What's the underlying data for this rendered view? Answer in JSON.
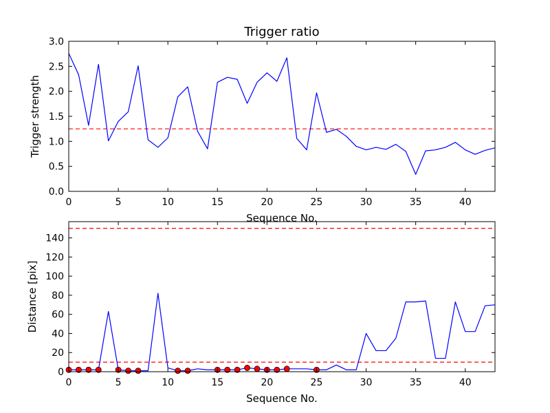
{
  "chart_data": [
    {
      "type": "line",
      "title": "Trigger ratio",
      "xlabel": "Sequence No.",
      "ylabel": "Trigger strength",
      "xlim": [
        0,
        43
      ],
      "ylim": [
        0,
        3.0
      ],
      "xticks": [
        0,
        5,
        10,
        15,
        20,
        25,
        30,
        35,
        40
      ],
      "yticks": [
        "0.0",
        "0.5",
        "1.0",
        "1.5",
        "2.0",
        "2.5",
        "3.0"
      ],
      "line_color": "#0000ff",
      "threshold": 1.25,
      "threshold_color": "#ff0000",
      "x": [
        0,
        1,
        2,
        3,
        4,
        5,
        6,
        7,
        8,
        9,
        10,
        11,
        12,
        13,
        14,
        15,
        16,
        17,
        18,
        19,
        20,
        21,
        22,
        23,
        24,
        25,
        26,
        27,
        28,
        29,
        30,
        31,
        32,
        33,
        34,
        35,
        36,
        37,
        38,
        39,
        40,
        41,
        42,
        43
      ],
      "values": [
        2.76,
        2.33,
        1.32,
        2.54,
        1.01,
        1.4,
        1.59,
        2.51,
        1.03,
        0.88,
        1.07,
        1.89,
        2.09,
        1.2,
        0.85,
        2.18,
        2.28,
        2.24,
        1.76,
        2.18,
        2.37,
        2.2,
        2.67,
        1.06,
        0.83,
        1.97,
        1.18,
        1.24,
        1.1,
        0.9,
        0.83,
        0.88,
        0.84,
        0.94,
        0.8,
        0.34,
        0.81,
        0.83,
        0.88,
        0.98,
        0.83,
        0.74,
        0.82,
        0.87
      ]
    },
    {
      "type": "line",
      "title": "",
      "xlabel": "Sequence No.",
      "ylabel": "Distance [pix]",
      "xlim": [
        0,
        43
      ],
      "ylim": [
        0,
        157
      ],
      "xticks": [
        0,
        5,
        10,
        15,
        20,
        25,
        30,
        35,
        40
      ],
      "yticks": [
        0,
        20,
        40,
        60,
        80,
        100,
        120,
        140
      ],
      "line_color": "#0000ff",
      "thresholds": [
        10,
        150
      ],
      "threshold_color": "#ff0000",
      "marker_color": "#ff0000",
      "x": [
        0,
        1,
        2,
        3,
        4,
        5,
        6,
        7,
        8,
        9,
        10,
        11,
        12,
        13,
        14,
        15,
        16,
        17,
        18,
        19,
        20,
        21,
        22,
        23,
        24,
        25,
        26,
        27,
        28,
        29,
        30,
        31,
        32,
        33,
        34,
        35,
        36,
        37,
        38,
        39,
        40,
        41,
        42,
        43
      ],
      "values": [
        2,
        2,
        2,
        2,
        63,
        2,
        1,
        1,
        1,
        82,
        4,
        1,
        1,
        3,
        2,
        2,
        2,
        2,
        4,
        3,
        2,
        2,
        3,
        3,
        3,
        2,
        2,
        7,
        2,
        2,
        40,
        22,
        22,
        35,
        73,
        73,
        74,
        14,
        14,
        73,
        42,
        42,
        69,
        70
      ],
      "marker_points": [
        {
          "x": 0,
          "y": 2
        },
        {
          "x": 1,
          "y": 2
        },
        {
          "x": 2,
          "y": 2
        },
        {
          "x": 3,
          "y": 2
        },
        {
          "x": 5,
          "y": 2
        },
        {
          "x": 6,
          "y": 1
        },
        {
          "x": 7,
          "y": 1
        },
        {
          "x": 11,
          "y": 1
        },
        {
          "x": 12,
          "y": 1
        },
        {
          "x": 15,
          "y": 2
        },
        {
          "x": 16,
          "y": 2
        },
        {
          "x": 17,
          "y": 2
        },
        {
          "x": 18,
          "y": 4
        },
        {
          "x": 19,
          "y": 3
        },
        {
          "x": 20,
          "y": 2
        },
        {
          "x": 21,
          "y": 2
        },
        {
          "x": 22,
          "y": 3
        },
        {
          "x": 25,
          "y": 2
        }
      ]
    }
  ]
}
